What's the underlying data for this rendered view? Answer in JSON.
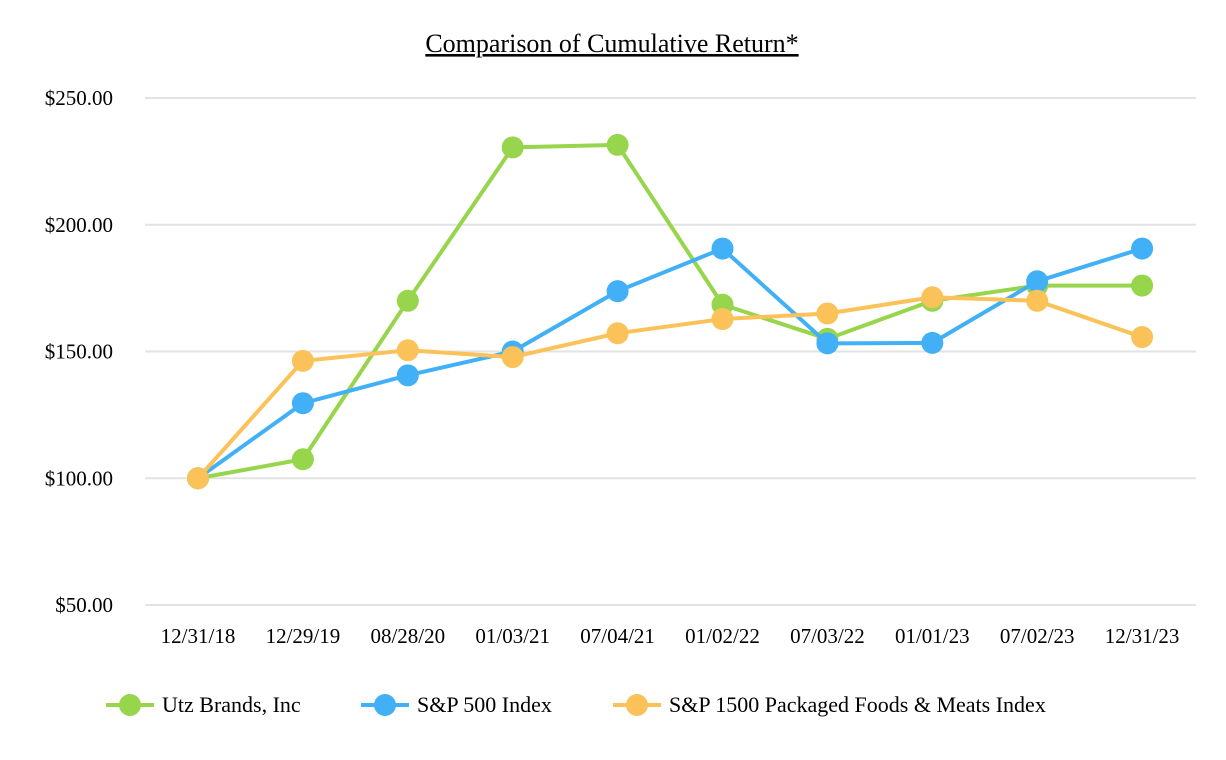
{
  "chart_data": {
    "type": "line",
    "title": "Comparison of Cumulative Return*",
    "xlabel": "",
    "ylabel": "",
    "categories": [
      "12/31/18",
      "12/29/19",
      "08/28/20",
      "01/03/21",
      "07/04/21",
      "01/02/22",
      "07/03/22",
      "01/01/23",
      "07/02/23",
      "12/31/23"
    ],
    "ylim": [
      50,
      250
    ],
    "yticks": [
      50,
      100,
      150,
      200,
      250
    ],
    "ytick_labels": [
      "$50.00",
      "$100.00",
      "$150.00",
      "$200.00",
      "$250.00"
    ],
    "grid": true,
    "legend_position": "bottom",
    "series": [
      {
        "name": "Utz Brands, Inc",
        "color": "#97D54C",
        "values": [
          100,
          107.5,
          170,
          230.5,
          231.5,
          168.5,
          155,
          170,
          176,
          176
        ]
      },
      {
        "name": "S&P 500 Index",
        "color": "#41B0F7",
        "values": [
          100,
          129.6,
          140.6,
          150,
          173.8,
          190.6,
          153.2,
          153.4,
          177.7,
          190.6
        ]
      },
      {
        "name": "S&P 1500 Packaged Foods & Meats Index",
        "color": "#FBC25A",
        "values": [
          100,
          146.3,
          150.5,
          147.8,
          157.2,
          162.8,
          165,
          171.4,
          170,
          155.7
        ]
      }
    ]
  }
}
